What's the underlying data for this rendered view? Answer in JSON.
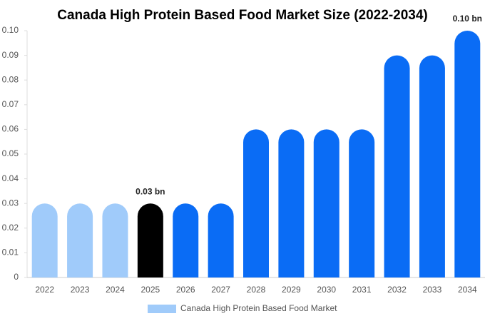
{
  "chart_data": {
    "type": "bar",
    "title": "Canada High Protein Based Food Market Size (2022-2034)",
    "categories": [
      "2022",
      "2023",
      "2024",
      "2025",
      "2026",
      "2027",
      "2028",
      "2029",
      "2030",
      "2031",
      "2032",
      "2033",
      "2034"
    ],
    "series": [
      {
        "name": "Canada High Protein Based Food Market",
        "color": "#a0cbfa",
        "values": [
          0.03,
          0.03,
          0.03,
          0.03,
          0.03,
          0.03,
          0.06,
          0.06,
          0.06,
          0.06,
          0.09,
          0.09,
          0.1
        ],
        "value_labels": [
          null,
          null,
          null,
          "0.03 bn",
          null,
          null,
          null,
          null,
          null,
          null,
          null,
          null,
          "0.10 bn"
        ],
        "bar_colors": [
          "#a0cbfa",
          "#a0cbfa",
          "#a0cbfa",
          "#000000",
          "#0a6cf5",
          "#0a6cf5",
          "#0a6cf5",
          "#0a6cf5",
          "#0a6cf5",
          "#0a6cf5",
          "#0a6cf5",
          "#0a6cf5",
          "#0a6cf5"
        ]
      }
    ],
    "ylim": [
      0,
      0.1
    ],
    "yticks": [
      0,
      0.01,
      0.02,
      0.03,
      0.04,
      0.05,
      0.06,
      0.07,
      0.08,
      0.09,
      {
        "value": 0.1,
        "label": "0.10"
      }
    ],
    "grid": false,
    "legend": "bottom"
  }
}
